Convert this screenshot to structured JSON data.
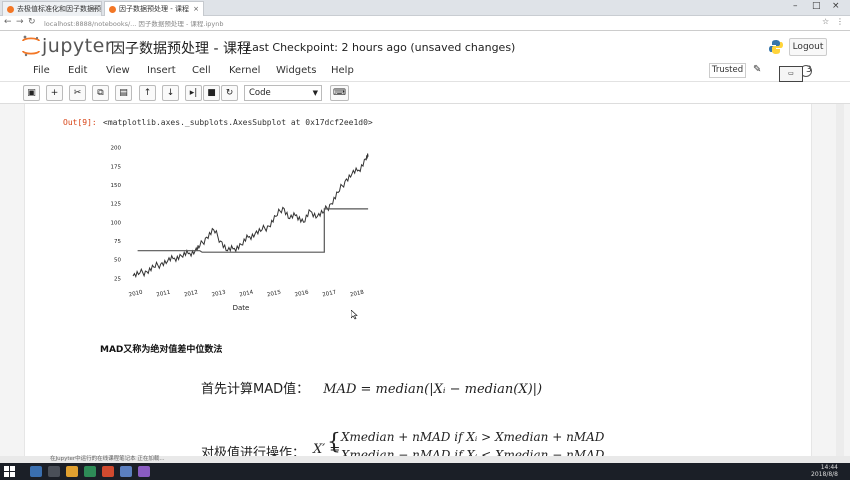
{
  "browser": {
    "tabs": [
      {
        "label": "去极值标准化和因子数据预处理_课件",
        "active": false
      },
      {
        "label": "因子数据预处理 - 课程",
        "active": true
      }
    ],
    "url": "localhost:8888/notebooks/... 因子数据预处理 - 课程.ipynb"
  },
  "header": {
    "logo": "jupyter",
    "title": "因子数据预处理 - 课程",
    "checkpoint": "Last Checkpoint: 2 hours ago (unsaved changes)",
    "logout": "Logout"
  },
  "menu": {
    "items": [
      "File",
      "Edit",
      "View",
      "Insert",
      "Cell",
      "Kernel",
      "Widgets",
      "Help"
    ],
    "trusted": "Trusted",
    "kernel_number": "3"
  },
  "toolbar": {
    "cell_type": "Code",
    "icons": [
      "save-icon",
      "plus-icon",
      "cut-icon",
      "copy-icon",
      "paste-icon",
      "up-arrow-icon",
      "down-arrow-icon",
      "run-icon",
      "stop-icon",
      "restart-icon",
      "keyboard-icon"
    ]
  },
  "output": {
    "prompt": "Out[9]:",
    "text": "<matplotlib.axes._subplots.AxesSubplot at 0x17dcf2ee1d0>"
  },
  "chart_data": {
    "type": "line",
    "xlabel": "Date",
    "x_ticks": [
      "2010",
      "2011",
      "2012",
      "2013",
      "2014",
      "2015",
      "2016",
      "2017",
      "2018"
    ],
    "y_ticks": [
      25,
      50,
      75,
      100,
      125,
      150,
      175,
      200
    ],
    "ylim": [
      20,
      205
    ],
    "series": [
      {
        "values": [
          [
            "2010-01",
            28
          ],
          [
            "2010-04",
            32
          ],
          [
            "2010-07",
            34
          ],
          [
            "2010-10",
            40
          ],
          [
            "2011-01",
            44
          ],
          [
            "2011-04",
            48
          ],
          [
            "2011-07",
            52
          ],
          [
            "2011-10",
            55
          ],
          [
            "2012-01",
            58
          ],
          [
            "2012-04",
            62
          ],
          [
            "2012-06",
            68
          ],
          [
            "2012-09",
            80
          ],
          [
            "2012-12",
            90
          ],
          [
            "2013-03",
            75
          ],
          [
            "2013-06",
            62
          ],
          [
            "2013-09",
            65
          ],
          [
            "2013-12",
            70
          ],
          [
            "2014-03",
            80
          ],
          [
            "2014-06",
            85
          ],
          [
            "2014-09",
            90
          ],
          [
            "2014-12",
            95
          ],
          [
            "2015-03",
            108
          ],
          [
            "2015-06",
            120
          ],
          [
            "2015-09",
            105
          ],
          [
            "2015-12",
            110
          ],
          [
            "2016-03",
            100
          ],
          [
            "2016-06",
            115
          ],
          [
            "2016-09",
            108
          ],
          [
            "2016-12",
            115
          ],
          [
            "2017-03",
            125
          ],
          [
            "2017-06",
            140
          ],
          [
            "2017-09",
            155
          ],
          [
            "2017-12",
            165
          ],
          [
            "2018-03",
            170
          ],
          [
            "2018-06",
            185
          ],
          [
            "2018-07",
            188
          ]
        ]
      },
      {
        "values": [
          [
            "2010-03",
            62
          ],
          [
            "2012-06",
            62
          ],
          [
            "2012-07",
            60
          ],
          [
            "2016-12",
            60
          ],
          [
            "2016-12",
            118
          ],
          [
            "2018-07",
            118
          ]
        ]
      }
    ]
  },
  "markdown": {
    "heading": "MAD又称为绝对值差中位数法",
    "step1_label": "首先计算MAD值：",
    "step1_formula": "MAD = median(|Xᵢ − median(X)|)",
    "step2_label": "对极值进行操作：",
    "step2_lhs": "X′ =",
    "step2_case1": "Xmedian + nMAD    if  Xᵢ > Xmedian + nMAD",
    "step2_case2": "Xmedian − nMAD    if  Xᵢ < Xmedian − nMAD"
  },
  "status_strip": "在Jupyter中运行的在线课程笔记本  正在加载...",
  "taskbar": {
    "time": "14:44",
    "date": "2018/8/8"
  }
}
